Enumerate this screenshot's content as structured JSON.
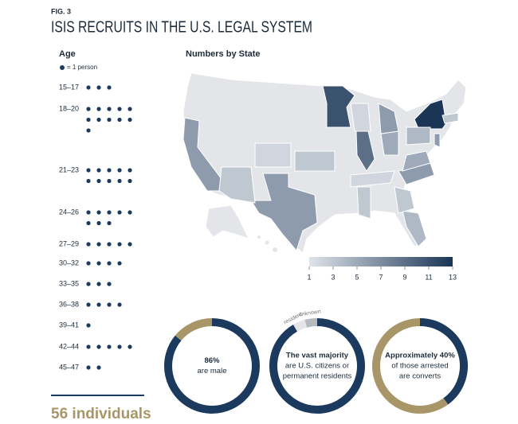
{
  "header": {
    "fig": "FIG. 3",
    "title": "ISIS RECRUITS IN THE U.S. LEGAL SYSTEM"
  },
  "age": {
    "title": "Age",
    "legend": "= 1 person",
    "groups": [
      {
        "label": "15–17",
        "count": 3
      },
      {
        "label": "18–20",
        "count": 11
      },
      {
        "label": "21–23",
        "count": 10
      },
      {
        "label": "24–26",
        "count": 8
      },
      {
        "label": "27–29",
        "count": 5
      },
      {
        "label": "30–32",
        "count": 4
      },
      {
        "label": "33–35",
        "count": 3
      },
      {
        "label": "36–38",
        "count": 4
      },
      {
        "label": "39–41",
        "count": 1
      },
      {
        "label": "42–44",
        "count": 5
      },
      {
        "label": "45–47",
        "count": 2
      }
    ]
  },
  "total": "56 individuals",
  "map": {
    "title": "Numbers by State",
    "state_values": [
      6,
      6,
      11,
      13,
      9,
      4,
      3,
      6,
      5,
      5,
      6,
      4,
      2,
      3,
      2,
      3,
      3,
      2,
      6,
      3
    ],
    "scale_range": [
      1,
      13
    ],
    "scale_ticks": [
      1,
      3,
      5,
      7,
      9,
      11,
      13
    ]
  },
  "circles": [
    {
      "value": 86,
      "lines": [
        "86%",
        "are male"
      ]
    },
    {
      "lines": [
        "The vast majority",
        "are U.S. citizens or",
        "permanent residents"
      ],
      "segments": [
        "resident",
        "unknown"
      ]
    },
    {
      "value": 40,
      "lines": [
        "Approximately 40%",
        "of those arrested",
        "are converts"
      ]
    }
  ]
}
